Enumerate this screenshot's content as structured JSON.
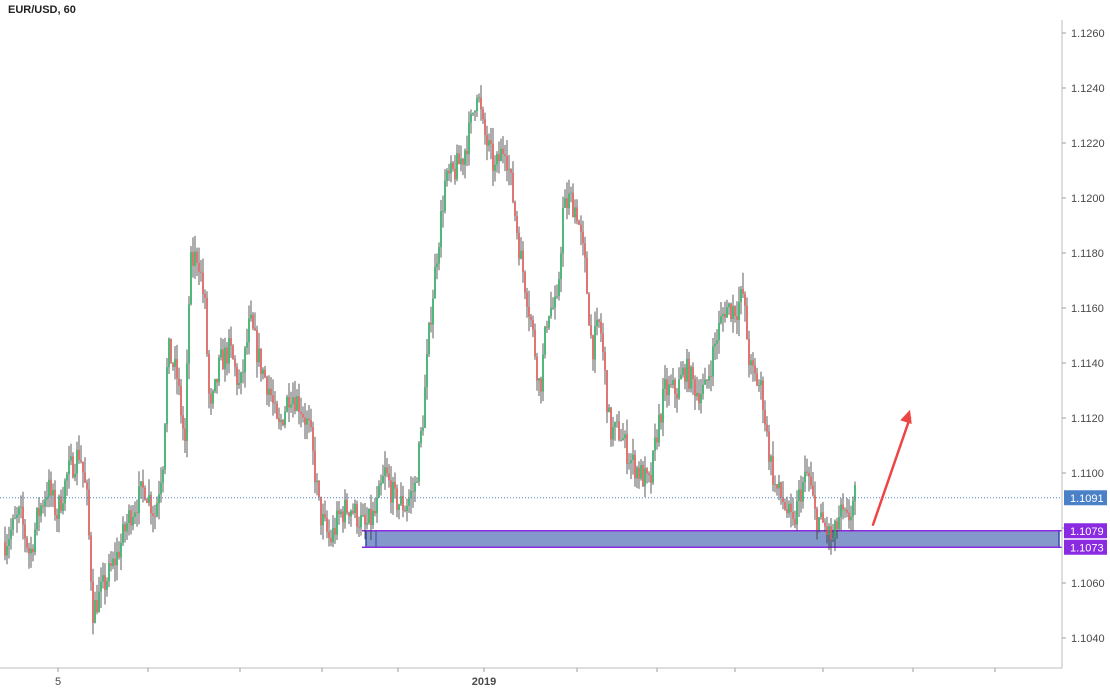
{
  "chart_data": {
    "type": "candlestick",
    "title": "EUR/USD, 60",
    "ylim": [
      1.103,
      1.1265
    ],
    "y_ticks": [
      "1.1260",
      "1.1240",
      "1.1220",
      "1.1200",
      "1.1180",
      "1.1160",
      "1.1140",
      "1.1120",
      "1.1100",
      "1.1080",
      "1.1060",
      "1.1040"
    ],
    "x_ticks": [
      {
        "label": "5",
        "bold": false
      },
      {
        "label": "",
        "bold": false
      },
      {
        "label": "",
        "bold": false
      },
      {
        "label": "",
        "bold": false
      },
      {
        "label": "",
        "bold": false
      },
      {
        "label": "2019",
        "bold": true
      },
      {
        "label": "",
        "bold": false
      },
      {
        "label": "",
        "bold": false
      },
      {
        "label": "",
        "bold": false
      },
      {
        "label": "",
        "bold": false
      },
      {
        "label": "",
        "bold": false
      },
      {
        "label": "",
        "bold": false
      }
    ],
    "price_path": [
      [
        0,
        1.1075
      ],
      [
        15,
        1.1085
      ],
      [
        25,
        1.107
      ],
      [
        33,
        1.1085
      ],
      [
        43,
        1.1095
      ],
      [
        52,
        1.1085
      ],
      [
        63,
        1.11
      ],
      [
        75,
        1.1108
      ],
      [
        82,
        1.109
      ],
      [
        88,
        1.105
      ],
      [
        100,
        1.106
      ],
      [
        112,
        1.107
      ],
      [
        125,
        1.1085
      ],
      [
        140,
        1.1095
      ],
      [
        150,
        1.1085
      ],
      [
        158,
        1.1105
      ],
      [
        163,
        1.1145
      ],
      [
        172,
        1.1135
      ],
      [
        180,
        1.111
      ],
      [
        185,
        1.1175
      ],
      [
        193,
        1.118
      ],
      [
        200,
        1.116
      ],
      [
        205,
        1.112
      ],
      [
        215,
        1.114
      ],
      [
        225,
        1.1145
      ],
      [
        235,
        1.113
      ],
      [
        245,
        1.1155
      ],
      [
        255,
        1.114
      ],
      [
        265,
        1.113
      ],
      [
        273,
        1.1115
      ],
      [
        285,
        1.113
      ],
      [
        295,
        1.1125
      ],
      [
        305,
        1.1115
      ],
      [
        315,
        1.1085
      ],
      [
        325,
        1.1075
      ],
      [
        335,
        1.1085
      ],
      [
        345,
        1.1088
      ],
      [
        360,
        1.108
      ],
      [
        370,
        1.1085
      ],
      [
        380,
        1.11
      ],
      [
        390,
        1.109
      ],
      [
        400,
        1.1088
      ],
      [
        410,
        1.1095
      ],
      [
        418,
        1.112
      ],
      [
        425,
        1.1155
      ],
      [
        432,
        1.118
      ],
      [
        440,
        1.1205
      ],
      [
        450,
        1.121
      ],
      [
        458,
        1.1215
      ],
      [
        465,
        1.1225
      ],
      [
        472,
        1.124
      ],
      [
        478,
        1.1225
      ],
      [
        490,
        1.121
      ],
      [
        500,
        1.122
      ],
      [
        508,
        1.12
      ],
      [
        515,
        1.118
      ],
      [
        522,
        1.1165
      ],
      [
        528,
        1.115
      ],
      [
        535,
        1.113
      ],
      [
        543,
        1.116
      ],
      [
        552,
        1.116
      ],
      [
        558,
        1.1195
      ],
      [
        565,
        1.12
      ],
      [
        572,
        1.1195
      ],
      [
        580,
        1.1175
      ],
      [
        587,
        1.1145
      ],
      [
        595,
        1.1155
      ],
      [
        605,
        1.1115
      ],
      [
        615,
        1.1115
      ],
      [
        625,
        1.1105
      ],
      [
        635,
        1.11
      ],
      [
        645,
        1.1095
      ],
      [
        652,
        1.1115
      ],
      [
        660,
        1.113
      ],
      [
        672,
        1.113
      ],
      [
        680,
        1.1138
      ],
      [
        692,
        1.113
      ],
      [
        700,
        1.113
      ],
      [
        712,
        1.115
      ],
      [
        720,
        1.116
      ],
      [
        732,
        1.116
      ],
      [
        738,
        1.1165
      ],
      [
        745,
        1.1138
      ],
      [
        757,
        1.113
      ],
      [
        763,
        1.111
      ],
      [
        770,
        1.1095
      ],
      [
        778,
        1.109
      ],
      [
        788,
        1.108
      ],
      [
        795,
        1.1093
      ],
      [
        803,
        1.11
      ],
      [
        810,
        1.1085
      ],
      [
        820,
        1.108
      ],
      [
        828,
        1.1075
      ],
      [
        835,
        1.1085
      ],
      [
        842,
        1.1082
      ],
      [
        850,
        1.1091
      ]
    ],
    "last_price": {
      "value": 1.1091,
      "label": "1.1091",
      "color": "#4a80c8"
    },
    "zone": {
      "top": 1.1079,
      "bottom": 1.1073,
      "top_label": "1.1079",
      "bottom_label": "1.1073",
      "fill": "#6f86c2",
      "border": "#3548a8",
      "badge_color": "#8a2be2"
    },
    "arrow": {
      "from": {
        "bar": 868,
        "price": 1.1079
      },
      "to": {
        "bar": 905,
        "price": 1.1123
      },
      "color": "#ef4444"
    },
    "candle_colors": {
      "up": "#26a65b",
      "down": "#d9534f"
    }
  }
}
